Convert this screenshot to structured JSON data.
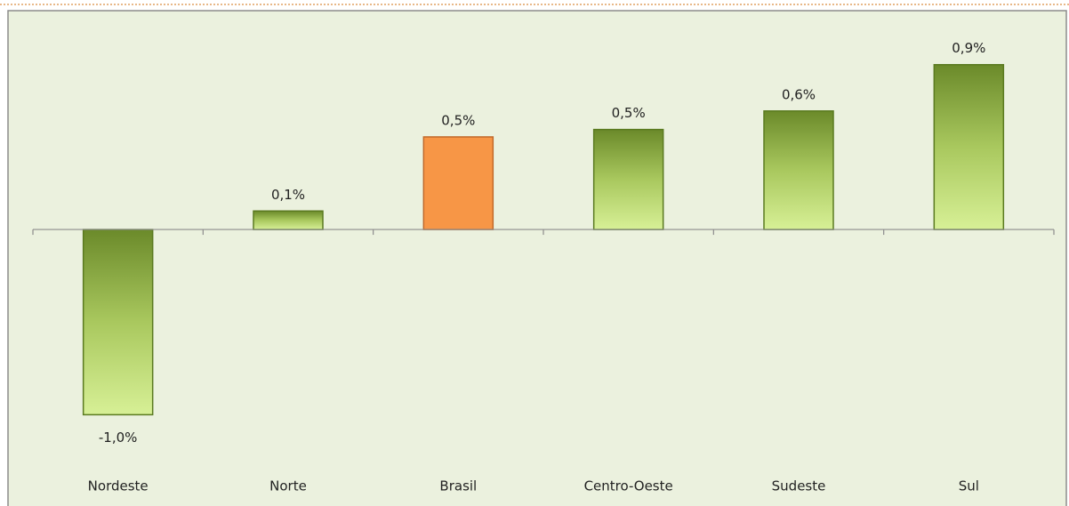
{
  "chart_data": {
    "type": "bar",
    "categories": [
      "Nordeste",
      "Norte",
      "Brasil",
      "Centro-Oeste",
      "Sudeste",
      "Sul"
    ],
    "values": [
      -1.0,
      0.1,
      0.5,
      0.54,
      0.64,
      0.89
    ],
    "value_labels": [
      "-1,0%",
      "0,1%",
      "0,5%",
      "0,5%",
      "0,6%",
      "0,9%"
    ],
    "colors": [
      "#77933c",
      "#77933c",
      "#f79646",
      "#77933c",
      "#77933c",
      "#77933c"
    ],
    "ylim": [
      -1.2,
      1.1
    ]
  }
}
